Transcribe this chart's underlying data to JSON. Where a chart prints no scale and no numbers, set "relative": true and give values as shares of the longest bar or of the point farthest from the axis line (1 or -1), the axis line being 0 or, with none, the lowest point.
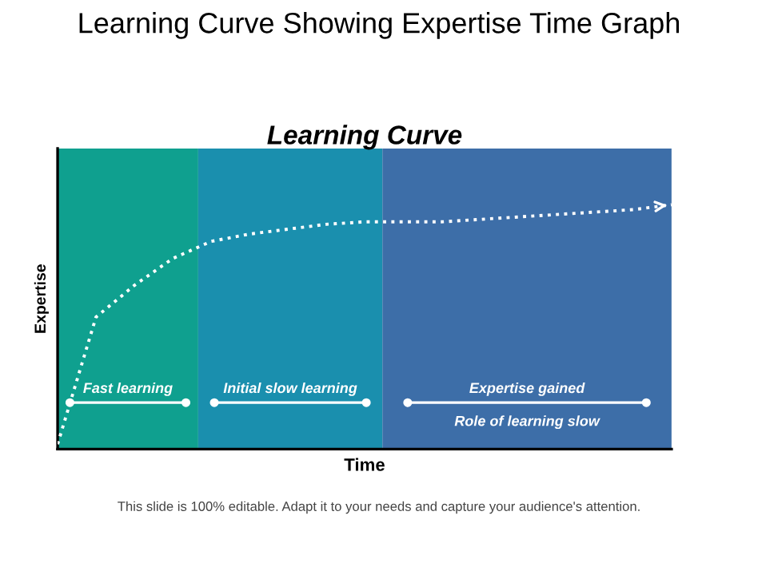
{
  "chart_data": {
    "type": "line",
    "title": "Learning Curve Showing Expertise Time Graph",
    "subtitle": "Learning Curve",
    "xlabel": "Time",
    "ylabel": "Expertise",
    "relative": true,
    "categories": [
      null,
      null,
      null,
      null,
      null,
      null,
      null,
      null,
      null,
      null,
      null,
      null,
      null,
      null,
      null,
      null,
      null
    ],
    "series": [
      {
        "color": "#ffffff",
        "values": [
          0.02,
          0.54,
          0.67,
          0.78,
          0.85,
          0.88,
          0.9,
          0.92,
          0.93,
          0.93,
          0.93,
          0.94,
          0.95,
          0.96,
          0.97,
          0.98,
          1.0
        ]
      }
    ],
    "line_style": "dotted",
    "marker": "none",
    "grid": false,
    "tick_labels": false,
    "annotations": [
      "Fast learning",
      "Initial slow learning",
      "Expertise gained",
      "Role of learning slow",
      "This slide is 100% editable. Adapt it to your needs and capture your audience's attention."
    ]
  }
}
